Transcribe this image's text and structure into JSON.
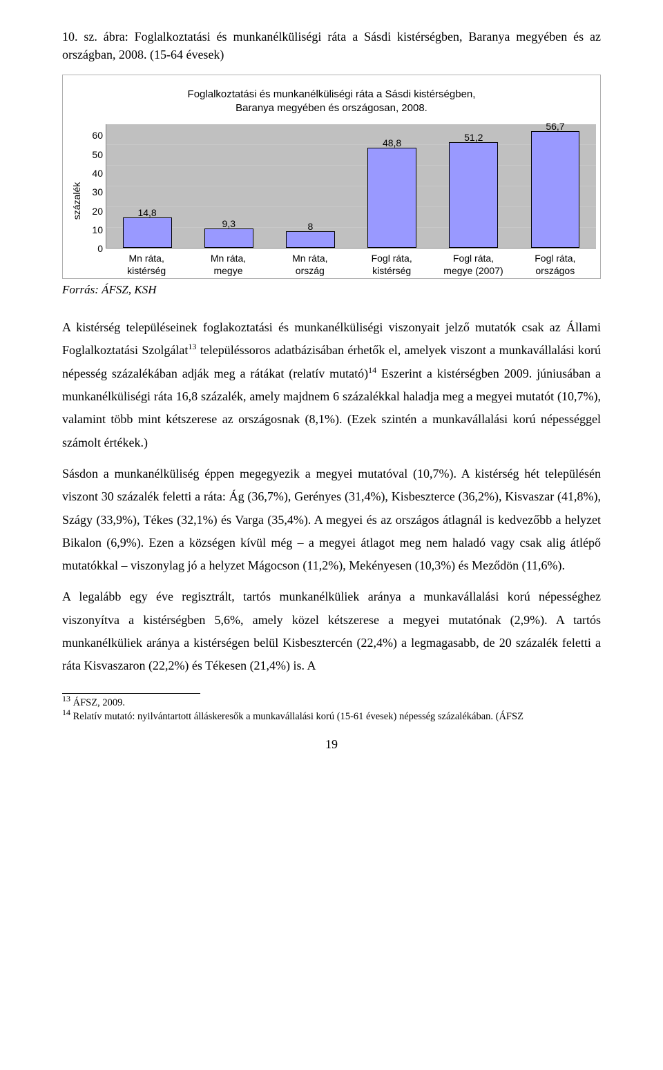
{
  "figure": {
    "caption": "10. sz. ábra: Foglalkoztatási és munkanélküliségi ráta a Sásdi kistérségben, Baranya megyében és az országban, 2008. (15-64 évesek)",
    "chart": {
      "type": "bar",
      "title_line1": "Foglalkoztatási és munkanélküliségi ráta a Sásdi kistérségben,",
      "title_line2": "Baranya megyében és országosan, 2008.",
      "ylabel": "százalék",
      "ylim_max": 60,
      "ytick_step": 10,
      "yticks": [
        "0",
        "10",
        "20",
        "30",
        "40",
        "50",
        "60"
      ],
      "bar_color": "#9999ff",
      "grid_color": "#c8c8c8",
      "plot_bg": "#c0c0c0",
      "series": [
        {
          "label_l1": "Mn ráta,",
          "label_l2": "kistérség",
          "value": 14.8,
          "display": "14,8"
        },
        {
          "label_l1": "Mn ráta,",
          "label_l2": "megye",
          "value": 9.3,
          "display": "9,3"
        },
        {
          "label_l1": "Mn ráta,",
          "label_l2": "ország",
          "value": 8,
          "display": "8"
        },
        {
          "label_l1": "Fogl ráta,",
          "label_l2": "kistérség",
          "value": 48.8,
          "display": "48,8"
        },
        {
          "label_l1": "Fogl ráta,",
          "label_l2": "megye (2007)",
          "value": 51.2,
          "display": "51,2"
        },
        {
          "label_l1": "Fogl ráta,",
          "label_l2": "országos",
          "value": 56.7,
          "display": "56,7"
        }
      ]
    },
    "source": "Forrás: ÁFSZ, KSH"
  },
  "paras": {
    "p1a": "A kistérség településeinek foglakoztatási és munkanélküliségi viszonyait jelző mutatók csak az Állami Foglalkoztatási Szolgálat",
    "p1b": " településsoros adatbázisában érhetők el, amelyek viszont a munkavállalási korú népesség százalékában adják meg a rátákat (relatív mutató)",
    "p1c": " Eszerint a kistérségben 2009. júniusában a munkanélküliségi ráta 16,8 százalék, amely majdnem 6 százalékkal haladja meg a megyei mutatót (10,7%), valamint több mint kétszerese az országosnak (8,1%). (Ezek szintén a munkavállalási korú népességgel számolt értékek.)",
    "p2": "Sásdon a munkanélküliség éppen megegyezik a megyei mutatóval (10,7%). A kistérség hét településén viszont 30 százalék feletti a ráta: Ág (36,7%), Gerényes (31,4%), Kisbeszterce (36,2%), Kisvaszar (41,8%), Szágy (33,9%), Tékes (32,1%) és Varga (35,4%). A megyei és az országos átlagnál is kedvezőbb a helyzet Bikalon (6,9%). Ezen a községen kívül még – a megyei átlagot meg nem haladó vagy csak alig átlépő mutatókkal – viszonylag jó a helyzet Mágocson (11,2%), Mekényesen (10,3%) és Meződön (11,6%).",
    "p3": "A legalább egy éve regisztrált, tartós munkanélküliek aránya a munkavállalási korú népességhez viszonyítva a kistérségben 5,6%, amely közel kétszerese a megyei mutatónak (2,9%). A tartós munkanélküliek aránya a kistérségen belül Kisbesztercén (22,4%) a legmagasabb, de 20 százalék feletti a ráta Kisvaszaron (22,2%) és Tékesen (21,4%) is. A"
  },
  "footrefs": {
    "fn13": "13",
    "fn14": "14"
  },
  "footnotes": {
    "fn13": "ÁFSZ, 2009.",
    "fn14": "Relatív mutató: nyilvántartott álláskeresők a munkavállalási korú (15-61 évesek) népesség százalékában. (ÁFSZ"
  },
  "page_number": "19"
}
